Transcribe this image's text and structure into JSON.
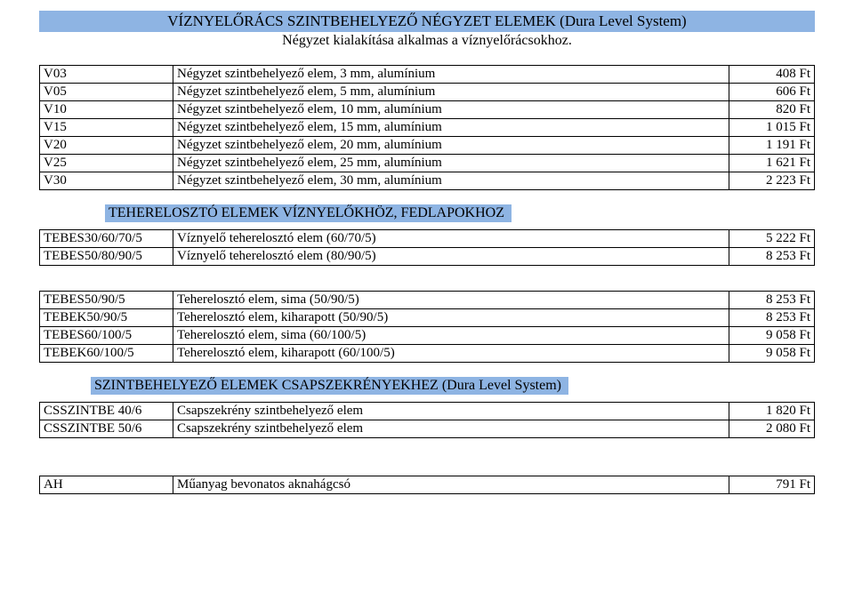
{
  "header": {
    "bar_color": "#8eb4e3",
    "title": "VÍZNYELŐRÁCS SZINTBEHELYEZŐ NÉGYZET ELEMEK (Dura Level System)",
    "subtitle": "Négyzet kialakítása alkalmas a víznyelőrácsokhoz."
  },
  "table1": {
    "col_widths": {
      "code": 150,
      "price": 96
    },
    "rows": [
      {
        "code": "V03",
        "desc": "Négyzet szintbehelyező elem, 3 mm, alumínium",
        "price": "408 Ft"
      },
      {
        "code": "V05",
        "desc": "Négyzet szintbehelyező elem, 5 mm, alumínium",
        "price": "606 Ft"
      },
      {
        "code": "V10",
        "desc": "Négyzet szintbehelyező elem, 10 mm, alumínium",
        "price": "820 Ft"
      },
      {
        "code": "V15",
        "desc": "Négyzet szintbehelyező elem, 15 mm, alumínium",
        "price": "1 015 Ft"
      },
      {
        "code": "V20",
        "desc": "Négyzet szintbehelyező elem, 20 mm, alumínium",
        "price": "1 191 Ft"
      },
      {
        "code": "V25",
        "desc": "Négyzet szintbehelyező elem, 25 mm, alumínium",
        "price": "1 621 Ft"
      },
      {
        "code": "V30",
        "desc": "Négyzet szintbehelyező elem, 30 mm, alumínium",
        "price": "2 223 Ft"
      }
    ]
  },
  "section2": {
    "title": "TEHERELOSZTÓ ELEMEK VÍZNYELŐKHÖZ, FEDLAPOKHOZ"
  },
  "table2": {
    "rows": [
      {
        "code": "TEBES30/60/70/5",
        "desc": "Víznyelő teherelosztó elem (60/70/5)",
        "price": "5 222 Ft"
      },
      {
        "code": "TEBES50/80/90/5",
        "desc": "Víznyelő teherelosztó elem (80/90/5)",
        "price": "8 253 Ft"
      }
    ]
  },
  "table3": {
    "rows": [
      {
        "code": "TEBES50/90/5",
        "desc": "Teherelosztó elem, sima (50/90/5)",
        "price": "8 253 Ft"
      },
      {
        "code": "TEBEK50/90/5",
        "desc": "Teherelosztó elem, kiharapott (50/90/5)",
        "price": "8 253 Ft"
      },
      {
        "code": "TEBES60/100/5",
        "desc": "Teherelosztó elem, sima (60/100/5)",
        "price": "9 058 Ft"
      },
      {
        "code": "TEBEK60/100/5",
        "desc": "Teherelosztó elem, kiharapott (60/100/5)",
        "price": "9 058 Ft"
      }
    ]
  },
  "section3": {
    "title": "SZINTBEHELYEZŐ ELEMEK CSAPSZEKRÉNYEKHEZ (Dura Level System)"
  },
  "table4": {
    "rows": [
      {
        "code": "CSSZINTBE 40/6",
        "desc": "Csapszekrény szintbehelyező elem",
        "price": "1 820 Ft"
      },
      {
        "code": "CSSZINTBE 50/6",
        "desc": "Csapszekrény szintbehelyező elem",
        "price": "2 080 Ft"
      }
    ]
  },
  "table5": {
    "rows": [
      {
        "code": "AH",
        "desc": "Műanyag bevonatos aknahágcsó",
        "price": "791 Ft"
      }
    ]
  }
}
